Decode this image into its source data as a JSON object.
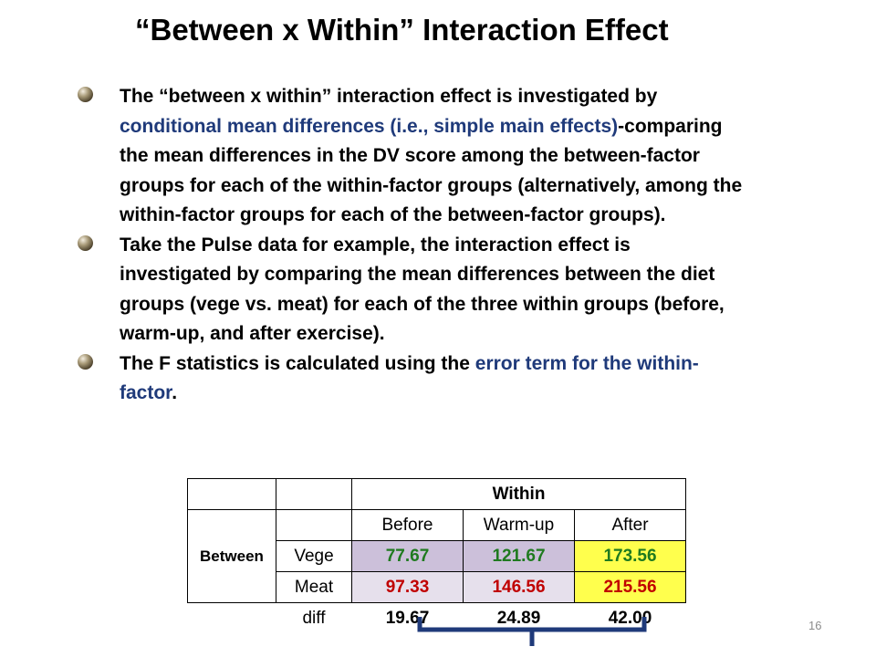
{
  "slide": {
    "title": "“Between x Within” Interaction Effect",
    "page_number": "16"
  },
  "bullets": [
    {
      "a": "The “between x within” interaction effect is investigated by ",
      "b": "conditional mean differences (i.e., simple main effects)",
      "c": "-comparing the mean differences in the DV score among the between-factor groups for each of the within-factor groups (alternatively, among the within-factor groups for each of the between-factor groups)."
    },
    {
      "a": "Take the Pulse data for example, the interaction effect is investigated by comparing the mean differences between the diet groups (vege vs. meat) for each of the three within groups (before, warm-up, and after exercise)."
    },
    {
      "a": "The F statistics is calculated using the ",
      "b": "error term for the within-factor",
      "c": "."
    }
  ],
  "table": {
    "within_header": "Within",
    "between_label": "Between",
    "columns": [
      "Before",
      "Warm-up",
      "After"
    ],
    "rows": [
      {
        "label": "Vege",
        "values": [
          "77.67",
          "121.67",
          "173.56"
        ]
      },
      {
        "label": "Meat",
        "values": [
          "97.33",
          "146.56",
          "215.56"
        ]
      }
    ],
    "diff": {
      "label": "diff",
      "values": [
        "19.67",
        "24.89",
        "42.00"
      ]
    }
  },
  "colors": {
    "vege_cell": "#ccc0da",
    "meat_cell": "#e6e0ec",
    "after_cell": "#ffff4d",
    "vege_text": "#1f7a1f",
    "meat_text": "#c00000",
    "highlight_text": "#1f3a7a",
    "bracket": "#1f3a7a"
  }
}
